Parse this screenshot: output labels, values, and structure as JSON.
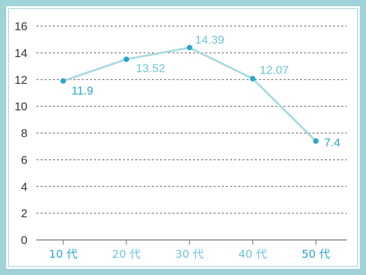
{
  "colors": {
    "frame": "#9fd3d8",
    "line": "#a8dadf",
    "point": "#2aa6c6",
    "label_strong": "#2aa6c6",
    "label_light": "#6dc6d6",
    "grid": "#555555",
    "axis_text": "#333333"
  },
  "chart_data": {
    "type": "line",
    "title": "",
    "xlabel": "",
    "ylabel": "",
    "ylim": [
      0,
      16
    ],
    "yticks": [
      "0",
      "2",
      "4",
      "6",
      "8",
      "10",
      "12",
      "14",
      "16"
    ],
    "grid": true,
    "categories": [
      "10 代",
      "20 代",
      "30 代",
      "40 代",
      "50 代"
    ],
    "category_emphasis": [
      true,
      false,
      false,
      false,
      true
    ],
    "series": [
      {
        "values": [
          11.9,
          13.52,
          14.39,
          12.07,
          7.4
        ],
        "labels": [
          "11.9",
          "13.52",
          "14.39",
          "12.07",
          "7.4"
        ],
        "label_emphasis": [
          true,
          false,
          false,
          false,
          true
        ]
      }
    ]
  }
}
